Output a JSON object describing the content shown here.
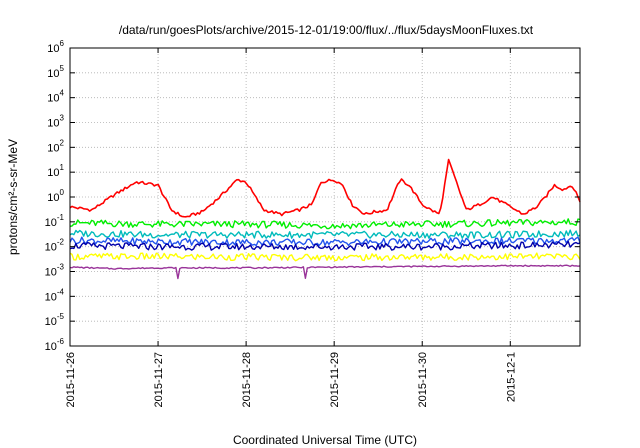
{
  "chart_data": {
    "type": "line",
    "title": "/data/run/goesPlots/archive/2015-12-01/19:00/flux/../flux/5daysMoonFluxes.txt",
    "xlabel": "Coordinated Universal Time (UTC)",
    "ylabel": "protons/cm²-s-sr-MeV",
    "y_scale": "log",
    "ylim": [
      1e-06,
      1000000.0
    ],
    "y_ticks": [
      {
        "base": "10",
        "exp": "-6",
        "value": 1e-06
      },
      {
        "base": "10",
        "exp": "-5",
        "value": 1e-05
      },
      {
        "base": "10",
        "exp": "-4",
        "value": 0.0001
      },
      {
        "base": "10",
        "exp": "-3",
        "value": 0.001
      },
      {
        "base": "10",
        "exp": "-2",
        "value": 0.01
      },
      {
        "base": "10",
        "exp": "-1",
        "value": 0.1
      },
      {
        "base": "10",
        "exp": "0",
        "value": 1
      },
      {
        "base": "10",
        "exp": "1",
        "value": 10
      },
      {
        "base": "10",
        "exp": "2",
        "value": 100
      },
      {
        "base": "10",
        "exp": "3",
        "value": 1000
      },
      {
        "base": "10",
        "exp": "4",
        "value": 10000
      },
      {
        "base": "10",
        "exp": "5",
        "value": 100000
      },
      {
        "base": "10",
        "exp": "6",
        "value": 1000000
      }
    ],
    "xlim": [
      "2015-11-26T00:00",
      "2015-12-01T19:00"
    ],
    "x_ticks": [
      "2015-11-26",
      "2015-11-27",
      "2015-11-28",
      "2015-11-29",
      "2015-11-30",
      "2015-12-1"
    ],
    "grid": true,
    "series": [
      {
        "color": "#ff0000",
        "x_days": [
          0,
          0.25,
          0.5,
          0.75,
          1.0,
          1.15,
          1.3,
          1.5,
          1.7,
          1.9,
          2.0,
          2.2,
          2.4,
          2.5,
          2.6,
          2.75,
          2.85,
          3.0,
          3.1,
          3.2,
          3.35,
          3.45,
          3.6,
          3.7,
          3.75,
          3.85,
          4.0,
          4.1,
          4.2,
          4.3,
          4.4,
          4.5,
          4.65,
          4.8,
          5.0,
          5.15,
          5.3,
          5.4,
          5.5,
          5.6,
          5.7,
          5.8
        ],
        "values": [
          0.4,
          0.3,
          1.2,
          4.0,
          3.0,
          0.3,
          0.15,
          0.25,
          1.0,
          5.0,
          4.0,
          0.3,
          0.2,
          0.25,
          0.3,
          0.5,
          4.0,
          5.0,
          3.0,
          0.5,
          0.2,
          0.25,
          0.3,
          2.0,
          5.0,
          3.0,
          0.5,
          0.3,
          0.2,
          30,
          3.0,
          0.3,
          0.5,
          1.0,
          0.4,
          0.2,
          0.4,
          1.0,
          3.0,
          2.0,
          3.0,
          0.6
        ]
      },
      {
        "color": "#00ee00",
        "x_days": [
          0,
          1,
          2,
          3,
          4,
          5,
          5.8
        ],
        "values": [
          0.09,
          0.08,
          0.08,
          0.07,
          0.08,
          0.09,
          0.1
        ]
      },
      {
        "color": "#00bbbb",
        "x_days": [
          0,
          1,
          2,
          3,
          4,
          5,
          5.8
        ],
        "values": [
          0.035,
          0.03,
          0.03,
          0.03,
          0.03,
          0.03,
          0.035
        ]
      },
      {
        "color": "#2255ee",
        "x_days": [
          0,
          1,
          2,
          3,
          4,
          5,
          5.8
        ],
        "values": [
          0.018,
          0.016,
          0.015,
          0.015,
          0.016,
          0.017,
          0.018
        ]
      },
      {
        "color": "#0000aa",
        "x_days": [
          0,
          1,
          2,
          3,
          4,
          5,
          5.8
        ],
        "values": [
          0.011,
          0.01,
          0.01,
          0.01,
          0.01,
          0.011,
          0.012
        ]
      },
      {
        "color": "#ffff00",
        "x_days": [
          0,
          1,
          2,
          3,
          4,
          5,
          5.8
        ],
        "values": [
          0.004,
          0.004,
          0.0038,
          0.0037,
          0.0038,
          0.004,
          0.004
        ]
      },
      {
        "color": "#993399",
        "x_days": [
          0,
          0.5,
          1,
          2,
          3,
          4,
          5,
          5.8
        ],
        "values": [
          0.0015,
          0.0013,
          0.0014,
          0.0014,
          0.0015,
          0.0016,
          0.0017,
          0.0017
        ]
      }
    ]
  }
}
